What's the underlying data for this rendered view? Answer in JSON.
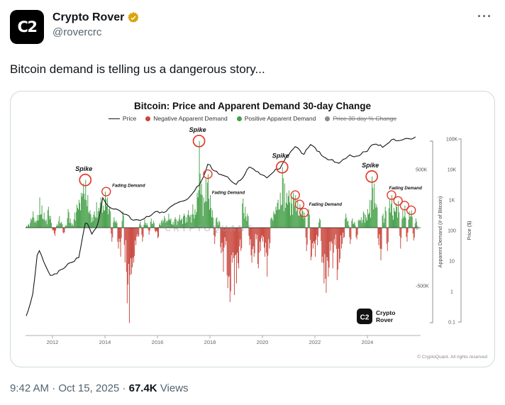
{
  "tweet": {
    "author": {
      "name": "Crypto Rover",
      "handle": "@rovercrc",
      "avatar_monogram": "C2",
      "badge_color": "#D9A40D"
    },
    "icons": {
      "more_glyph": "···"
    },
    "text": "Bitcoin demand is telling us a dangerous story...",
    "timestamp": "9:42 AM · Oct 15, 2025",
    "separator": "·",
    "views_count": "67.4K",
    "views_label": "Views"
  },
  "chart_data": {
    "type": "bar+line",
    "title": "Bitcoin: Price and Apparent Demand 30-day Change",
    "legend": [
      {
        "label": "Price",
        "type": "line",
        "color": "#1a1a1a"
      },
      {
        "label": "Negative Apparent Demand",
        "type": "dot",
        "color": "#c8463c"
      },
      {
        "label": "Positive Apparent Demand",
        "type": "dot",
        "color": "#46a049"
      },
      {
        "label": "Price 30-day % Change",
        "type": "dot",
        "color": "#8a8a8a",
        "struck": true
      }
    ],
    "colors": {
      "positive": "#46a049",
      "negative": "#c8463c",
      "price_line": "#14171a",
      "marker": "#e23a2b"
    },
    "x_ticks": [
      2012,
      2014,
      2016,
      2018,
      2020,
      2022,
      2024
    ],
    "x_range": [
      2011,
      2026
    ],
    "demand_axis": {
      "label": "Apparent Demand (# of Bitcoin)",
      "ticks": [
        "500K",
        "0",
        "-500K"
      ],
      "tick_values": [
        500,
        0,
        -500
      ],
      "units": "thousands of BTC",
      "ylim_k": [
        -900,
        1000
      ]
    },
    "price_axis": {
      "label": "Price ($)",
      "scale": "log",
      "ticks": [
        "100K",
        "10K",
        "1K",
        "100",
        "10",
        "1",
        "0.1"
      ]
    },
    "demand_series": {
      "start_year": 2011.0,
      "step_years": 0.08333,
      "values_thousands": [
        15,
        30,
        80,
        140,
        60,
        110,
        260,
        190,
        130,
        70,
        180,
        100,
        -25,
        -70,
        30,
        100,
        50,
        -50,
        25,
        160,
        80,
        35,
        130,
        200,
        240,
        300,
        380,
        410,
        280,
        150,
        90,
        140,
        220,
        170,
        260,
        190,
        310,
        260,
        180,
        -120,
        90,
        60,
        -180,
        -250,
        140,
        -300,
        -650,
        -820,
        -400,
        -300,
        -150,
        -80,
        50,
        -120,
        70,
        40,
        -60,
        80,
        60,
        -40,
        -90,
        40,
        70,
        100,
        60,
        120,
        80,
        50,
        90,
        60,
        110,
        80,
        120,
        90,
        150,
        110,
        200,
        160,
        300,
        745,
        380,
        260,
        420,
        460,
        280,
        150,
        -140,
        90,
        60,
        -220,
        -380,
        -150,
        -520,
        -640,
        -300,
        -580,
        -480,
        -350,
        -200,
        250,
        180,
        120,
        -150,
        -300,
        -250,
        -100,
        -350,
        -200,
        -120,
        -250,
        -420,
        -180,
        90,
        140,
        180,
        240,
        300,
        520,
        380,
        300,
        320,
        280,
        300,
        280,
        240,
        200,
        170,
        130,
        -200,
        160,
        -280,
        -180,
        -250,
        -150,
        80,
        -300,
        -480,
        -560,
        -420,
        -200,
        -350,
        -150,
        -450,
        -300,
        -180,
        -90,
        120,
        60,
        -140,
        80,
        50,
        -100,
        70,
        90,
        140,
        110,
        160,
        240,
        440,
        380,
        200,
        -150,
        -280,
        120,
        180,
        -200,
        240,
        280,
        170,
        210,
        230,
        -180,
        150,
        190,
        -120,
        140,
        150,
        -110,
        80
      ]
    },
    "price_anchors": [
      [
        2011.0,
        0.15
      ],
      [
        2011.25,
        0.8
      ],
      [
        2011.45,
        28
      ],
      [
        2011.7,
        8
      ],
      [
        2011.95,
        3
      ],
      [
        2012.3,
        5
      ],
      [
        2012.7,
        9
      ],
      [
        2013.0,
        13
      ],
      [
        2013.28,
        230
      ],
      [
        2013.5,
        80
      ],
      [
        2013.7,
        120
      ],
      [
        2013.92,
        1150
      ],
      [
        2014.15,
        600
      ],
      [
        2014.5,
        450
      ],
      [
        2014.85,
        330
      ],
      [
        2015.05,
        210
      ],
      [
        2015.5,
        240
      ],
      [
        2015.85,
        380
      ],
      [
        2016.3,
        420
      ],
      [
        2016.6,
        650
      ],
      [
        2016.95,
        950
      ],
      [
        2017.2,
        1150
      ],
      [
        2017.45,
        2400
      ],
      [
        2017.7,
        4200
      ],
      [
        2017.95,
        19000
      ],
      [
        2018.1,
        9500
      ],
      [
        2018.35,
        7500
      ],
      [
        2018.6,
        6300
      ],
      [
        2018.95,
        3300
      ],
      [
        2019.2,
        4500
      ],
      [
        2019.5,
        12500
      ],
      [
        2019.8,
        8800
      ],
      [
        2019.95,
        7200
      ],
      [
        2020.2,
        5300
      ],
      [
        2020.45,
        9200
      ],
      [
        2020.7,
        11500
      ],
      [
        2020.95,
        28000
      ],
      [
        2021.1,
        42000
      ],
      [
        2021.3,
        61000
      ],
      [
        2021.55,
        31000
      ],
      [
        2021.85,
        67000
      ],
      [
        2022.1,
        41000
      ],
      [
        2022.45,
        21000
      ],
      [
        2022.7,
        19500
      ],
      [
        2022.9,
        16000
      ],
      [
        2023.1,
        23000
      ],
      [
        2023.35,
        29000
      ],
      [
        2023.6,
        26500
      ],
      [
        2023.85,
        37000
      ],
      [
        2024.05,
        45000
      ],
      [
        2024.2,
        71000
      ],
      [
        2024.45,
        62000
      ],
      [
        2024.65,
        55000
      ],
      [
        2024.95,
        98000
      ],
      [
        2025.1,
        92000
      ],
      [
        2025.25,
        84000
      ],
      [
        2025.45,
        108000
      ],
      [
        2025.6,
        104000
      ],
      [
        2025.83,
        112000
      ]
    ],
    "annotations": {
      "spike_markers": [
        {
          "label": "Spike",
          "x": 2013.25,
          "value_k": 410
        },
        {
          "label": "Spike",
          "x": 2017.583,
          "value_k": 745
        },
        {
          "label": "Spike",
          "x": 2020.75,
          "value_k": 520
        },
        {
          "label": "Spike",
          "x": 2024.167,
          "value_k": 440
        }
      ],
      "fading_groups": [
        {
          "label": "Fading Demand",
          "label_x": 2014.9,
          "label_value_k": 350,
          "circles": [
            {
              "x": 2014.047,
              "value_k": 310
            }
          ]
        },
        {
          "label": "Fading Demand",
          "label_x": 2018.7,
          "label_value_k": 290,
          "circles": [
            {
              "x": 2017.917,
              "value_k": 460
            }
          ]
        },
        {
          "label": "Fading Demand",
          "label_x": 2022.4,
          "label_value_k": 190,
          "circles": [
            {
              "x": 2021.25,
              "value_k": 280
            },
            {
              "x": 2021.417,
              "value_k": 200
            },
            {
              "x": 2021.583,
              "value_k": 130
            }
          ]
        },
        {
          "label": "Fading Demand",
          "label_x": 2025.45,
          "label_value_k": 330,
          "circles": [
            {
              "x": 2024.917,
              "value_k": 280
            },
            {
              "x": 2025.167,
              "value_k": 230
            },
            {
              "x": 2025.417,
              "value_k": 190
            },
            {
              "x": 2025.667,
              "value_k": 150
            }
          ]
        }
      ]
    },
    "watermark": "CRYPTOQUANT",
    "chart_logo": {
      "glyph": "C2",
      "line1": "Crypto",
      "line2": "Rover"
    },
    "copyright": "© CryptoQuant. All rights reserved"
  }
}
